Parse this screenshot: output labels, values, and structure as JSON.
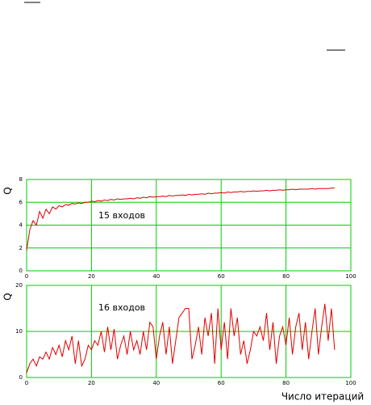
{
  "chart_data": [
    {
      "type": "line",
      "ylabel": "Q",
      "annotation": "15 входов",
      "color": "#e00000",
      "grid": true,
      "grid_color": "#00cc00",
      "xlim": [
        0,
        100
      ],
      "xticks": [
        0,
        20,
        40,
        60,
        80,
        100
      ],
      "ylim": [
        0,
        8
      ],
      "yticks": [
        0,
        2,
        4,
        6,
        8
      ],
      "x": [
        0,
        1,
        2,
        3,
        4,
        5,
        6,
        7,
        8,
        9,
        10,
        11,
        12,
        13,
        14,
        15,
        16,
        17,
        18,
        19,
        20,
        21,
        22,
        23,
        24,
        25,
        26,
        27,
        28,
        29,
        30,
        31,
        32,
        33,
        34,
        35,
        36,
        37,
        38,
        39,
        40,
        41,
        42,
        43,
        44,
        45,
        46,
        47,
        48,
        49,
        50,
        51,
        52,
        53,
        54,
        55,
        56,
        57,
        58,
        59,
        60,
        61,
        62,
        63,
        64,
        65,
        66,
        67,
        68,
        69,
        70,
        71,
        72,
        73,
        74,
        75,
        76,
        77,
        78,
        79,
        80,
        81,
        82,
        83,
        84,
        85,
        86,
        87,
        88,
        89,
        90,
        91,
        92,
        93,
        94,
        95
      ],
      "values": [
        1.8,
        3.6,
        4.4,
        4.0,
        5.2,
        4.6,
        5.4,
        5.0,
        5.6,
        5.4,
        5.7,
        5.6,
        5.8,
        5.75,
        5.9,
        5.85,
        5.95,
        5.9,
        6.0,
        6.0,
        6.1,
        6.05,
        6.15,
        6.1,
        6.2,
        6.15,
        6.25,
        6.2,
        6.3,
        6.25,
        6.3,
        6.3,
        6.35,
        6.3,
        6.4,
        6.35,
        6.45,
        6.4,
        6.5,
        6.45,
        6.5,
        6.5,
        6.55,
        6.5,
        6.6,
        6.55,
        6.6,
        6.6,
        6.65,
        6.6,
        6.7,
        6.65,
        6.7,
        6.7,
        6.75,
        6.7,
        6.8,
        6.75,
        6.8,
        6.8,
        6.85,
        6.8,
        6.9,
        6.85,
        6.9,
        6.9,
        6.95,
        6.9,
        6.95,
        6.95,
        7.0,
        6.95,
        7.0,
        7.0,
        7.05,
        7.0,
        7.05,
        7.05,
        7.1,
        7.05,
        7.1,
        7.1,
        7.15,
        7.1,
        7.15,
        7.15,
        7.15,
        7.15,
        7.2,
        7.15,
        7.2,
        7.2,
        7.2,
        7.2,
        7.25,
        7.25
      ]
    },
    {
      "type": "line",
      "ylabel": "Q",
      "xlabel": "Число итераций",
      "annotation": "16 входов",
      "color": "#e00000",
      "grid": true,
      "grid_color": "#00cc00",
      "xlim": [
        0,
        100
      ],
      "xticks": [
        0,
        20,
        40,
        60,
        80,
        100
      ],
      "ylim": [
        0,
        20
      ],
      "yticks": [
        0,
        10,
        20
      ],
      "x": [
        0,
        1,
        2,
        3,
        4,
        5,
        6,
        7,
        8,
        9,
        10,
        11,
        12,
        13,
        14,
        15,
        16,
        17,
        18,
        19,
        20,
        21,
        22,
        23,
        24,
        25,
        26,
        27,
        28,
        29,
        30,
        31,
        32,
        33,
        34,
        35,
        36,
        37,
        38,
        39,
        40,
        41,
        42,
        43,
        44,
        45,
        46,
        47,
        48,
        49,
        50,
        51,
        52,
        53,
        54,
        55,
        56,
        57,
        58,
        59,
        60,
        61,
        62,
        63,
        64,
        65,
        66,
        67,
        68,
        69,
        70,
        71,
        72,
        73,
        74,
        75,
        76,
        77,
        78,
        79,
        80,
        81,
        82,
        83,
        84,
        85,
        86,
        87,
        88,
        89,
        90,
        91,
        92,
        93,
        94,
        95
      ],
      "values": [
        1,
        3,
        4,
        2.5,
        4.5,
        4,
        5.5,
        4,
        6.5,
        5,
        7,
        4.5,
        8,
        6,
        9,
        3,
        8,
        2.5,
        4,
        7,
        6,
        8,
        7,
        10,
        5.5,
        11,
        6,
        10.5,
        4,
        7,
        9,
        5,
        10,
        6,
        8,
        5,
        10,
        6,
        12,
        11,
        4,
        9,
        12,
        5,
        11,
        3,
        8,
        13,
        14,
        15,
        15,
        4,
        7,
        11,
        5,
        13,
        9,
        14,
        3,
        15,
        6,
        12,
        4,
        15,
        9,
        13,
        5,
        8,
        3,
        6,
        10,
        9,
        11,
        8,
        14,
        6,
        12,
        3,
        9,
        11,
        7,
        13,
        5,
        11,
        14,
        6,
        12,
        4,
        10,
        15,
        5,
        11,
        16,
        8,
        15,
        6
      ]
    }
  ]
}
